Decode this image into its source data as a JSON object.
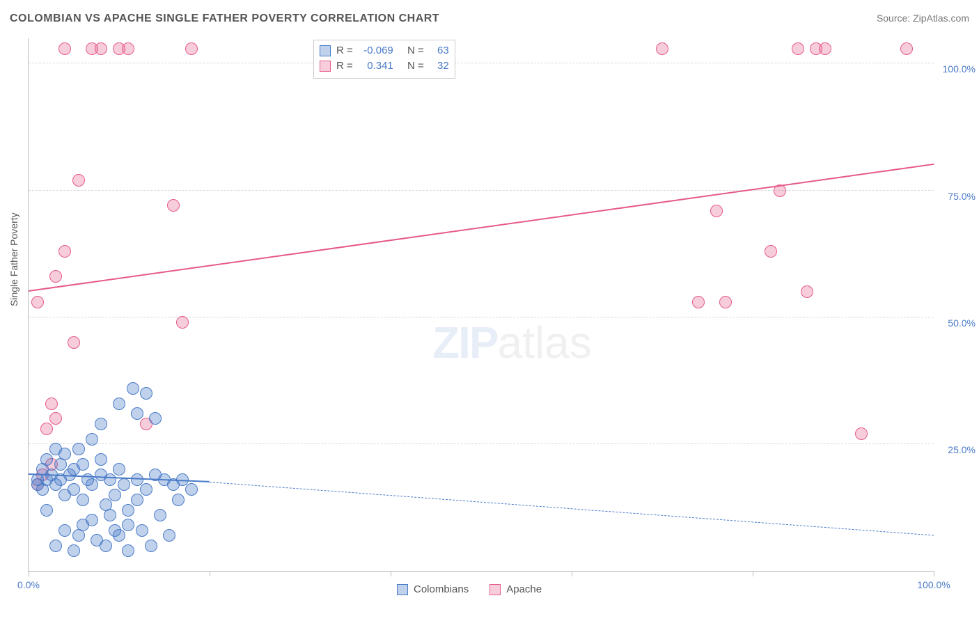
{
  "title": "COLOMBIAN VS APACHE SINGLE FATHER POVERTY CORRELATION CHART",
  "source_label": "Source: ",
  "source_name": "ZipAtlas.com",
  "yaxis_title": "Single Father Poverty",
  "watermark_zip": "ZIP",
  "watermark_atlas": "atlas",
  "chart": {
    "type": "scatter-correlation",
    "background_color": "#ffffff",
    "grid_color": "#d8d8d8",
    "axis_color": "#bbbbbb",
    "tick_label_color": "#4a7bc8",
    "xlim": [
      0,
      100
    ],
    "ylim": [
      0,
      105
    ],
    "ytick_values": [
      25,
      50,
      75,
      100
    ],
    "ytick_labels": [
      "25.0%",
      "50.0%",
      "75.0%",
      "100.0%"
    ],
    "xtick_values": [
      0,
      20,
      40,
      60,
      80,
      100
    ],
    "xtick_labels": {
      "0": "0.0%",
      "100": "100.0%"
    },
    "marker_radius": 9,
    "marker_border_width": 1.5,
    "marker_fill_opacity": 0.35
  },
  "series_a": {
    "name": "Colombians",
    "color_border": "#4a7bc8",
    "color_fill": "rgba(74,123,200,0.35)",
    "R_label": "R =",
    "R_value": "-0.069",
    "N_label": "N =",
    "N_value": "63",
    "regression": {
      "x0": 0,
      "y0": 19,
      "x_solid_end": 20,
      "y_solid_end": 17.5,
      "x1": 100,
      "y1": 7
    },
    "points": [
      [
        1,
        17
      ],
      [
        1,
        18
      ],
      [
        1.5,
        20
      ],
      [
        1.5,
        16
      ],
      [
        2,
        18
      ],
      [
        2,
        12
      ],
      [
        2,
        22
      ],
      [
        2.5,
        19
      ],
      [
        3,
        17
      ],
      [
        3,
        24
      ],
      [
        3,
        5
      ],
      [
        3.5,
        18
      ],
      [
        3.5,
        21
      ],
      [
        4,
        23
      ],
      [
        4,
        15
      ],
      [
        4,
        8
      ],
      [
        4.5,
        19
      ],
      [
        5,
        20
      ],
      [
        5,
        4
      ],
      [
        5,
        16
      ],
      [
        5.5,
        24
      ],
      [
        5.5,
        7
      ],
      [
        6,
        21
      ],
      [
        6,
        14
      ],
      [
        6,
        9
      ],
      [
        6.5,
        18
      ],
      [
        7,
        26
      ],
      [
        7,
        17
      ],
      [
        7,
        10
      ],
      [
        7.5,
        6
      ],
      [
        8,
        22
      ],
      [
        8,
        19
      ],
      [
        8,
        29
      ],
      [
        8.5,
        13
      ],
      [
        8.5,
        5
      ],
      [
        9,
        11
      ],
      [
        9,
        18
      ],
      [
        9.5,
        8
      ],
      [
        9.5,
        15
      ],
      [
        10,
        33
      ],
      [
        10,
        20
      ],
      [
        10,
        7
      ],
      [
        10.5,
        17
      ],
      [
        11,
        9
      ],
      [
        11,
        12
      ],
      [
        11,
        4
      ],
      [
        11.5,
        36
      ],
      [
        12,
        31
      ],
      [
        12,
        18
      ],
      [
        12,
        14
      ],
      [
        12.5,
        8
      ],
      [
        13,
        16
      ],
      [
        13,
        35
      ],
      [
        13.5,
        5
      ],
      [
        14,
        30
      ],
      [
        14,
        19
      ],
      [
        14.5,
        11
      ],
      [
        15,
        18
      ],
      [
        15.5,
        7
      ],
      [
        16,
        17
      ],
      [
        16.5,
        14
      ],
      [
        17,
        18
      ],
      [
        18,
        16
      ]
    ]
  },
  "series_b": {
    "name": "Apache",
    "color_border": "#e65a88",
    "color_fill": "rgba(230,90,136,0.30)",
    "R_label": "R =",
    "R_value": "0.341",
    "N_label": "N =",
    "N_value": "32",
    "regression": {
      "x0": 0,
      "y0": 55,
      "x1": 100,
      "y1": 80
    },
    "points": [
      [
        1,
        53
      ],
      [
        1,
        17
      ],
      [
        1.5,
        19
      ],
      [
        2,
        28
      ],
      [
        2.5,
        21
      ],
      [
        2.5,
        33
      ],
      [
        3,
        58
      ],
      [
        3,
        30
      ],
      [
        4,
        63
      ],
      [
        4,
        103
      ],
      [
        5,
        45
      ],
      [
        5.5,
        77
      ],
      [
        7,
        103
      ],
      [
        8,
        103
      ],
      [
        10,
        103
      ],
      [
        11,
        103
      ],
      [
        13,
        29
      ],
      [
        16,
        72
      ],
      [
        17,
        49
      ],
      [
        18,
        103
      ],
      [
        70,
        103
      ],
      [
        74,
        53
      ],
      [
        76,
        71
      ],
      [
        77,
        53
      ],
      [
        82,
        63
      ],
      [
        83,
        75
      ],
      [
        85,
        103
      ],
      [
        86,
        55
      ],
      [
        87,
        103
      ],
      [
        88,
        103
      ],
      [
        92,
        27
      ],
      [
        97,
        103
      ]
    ]
  }
}
